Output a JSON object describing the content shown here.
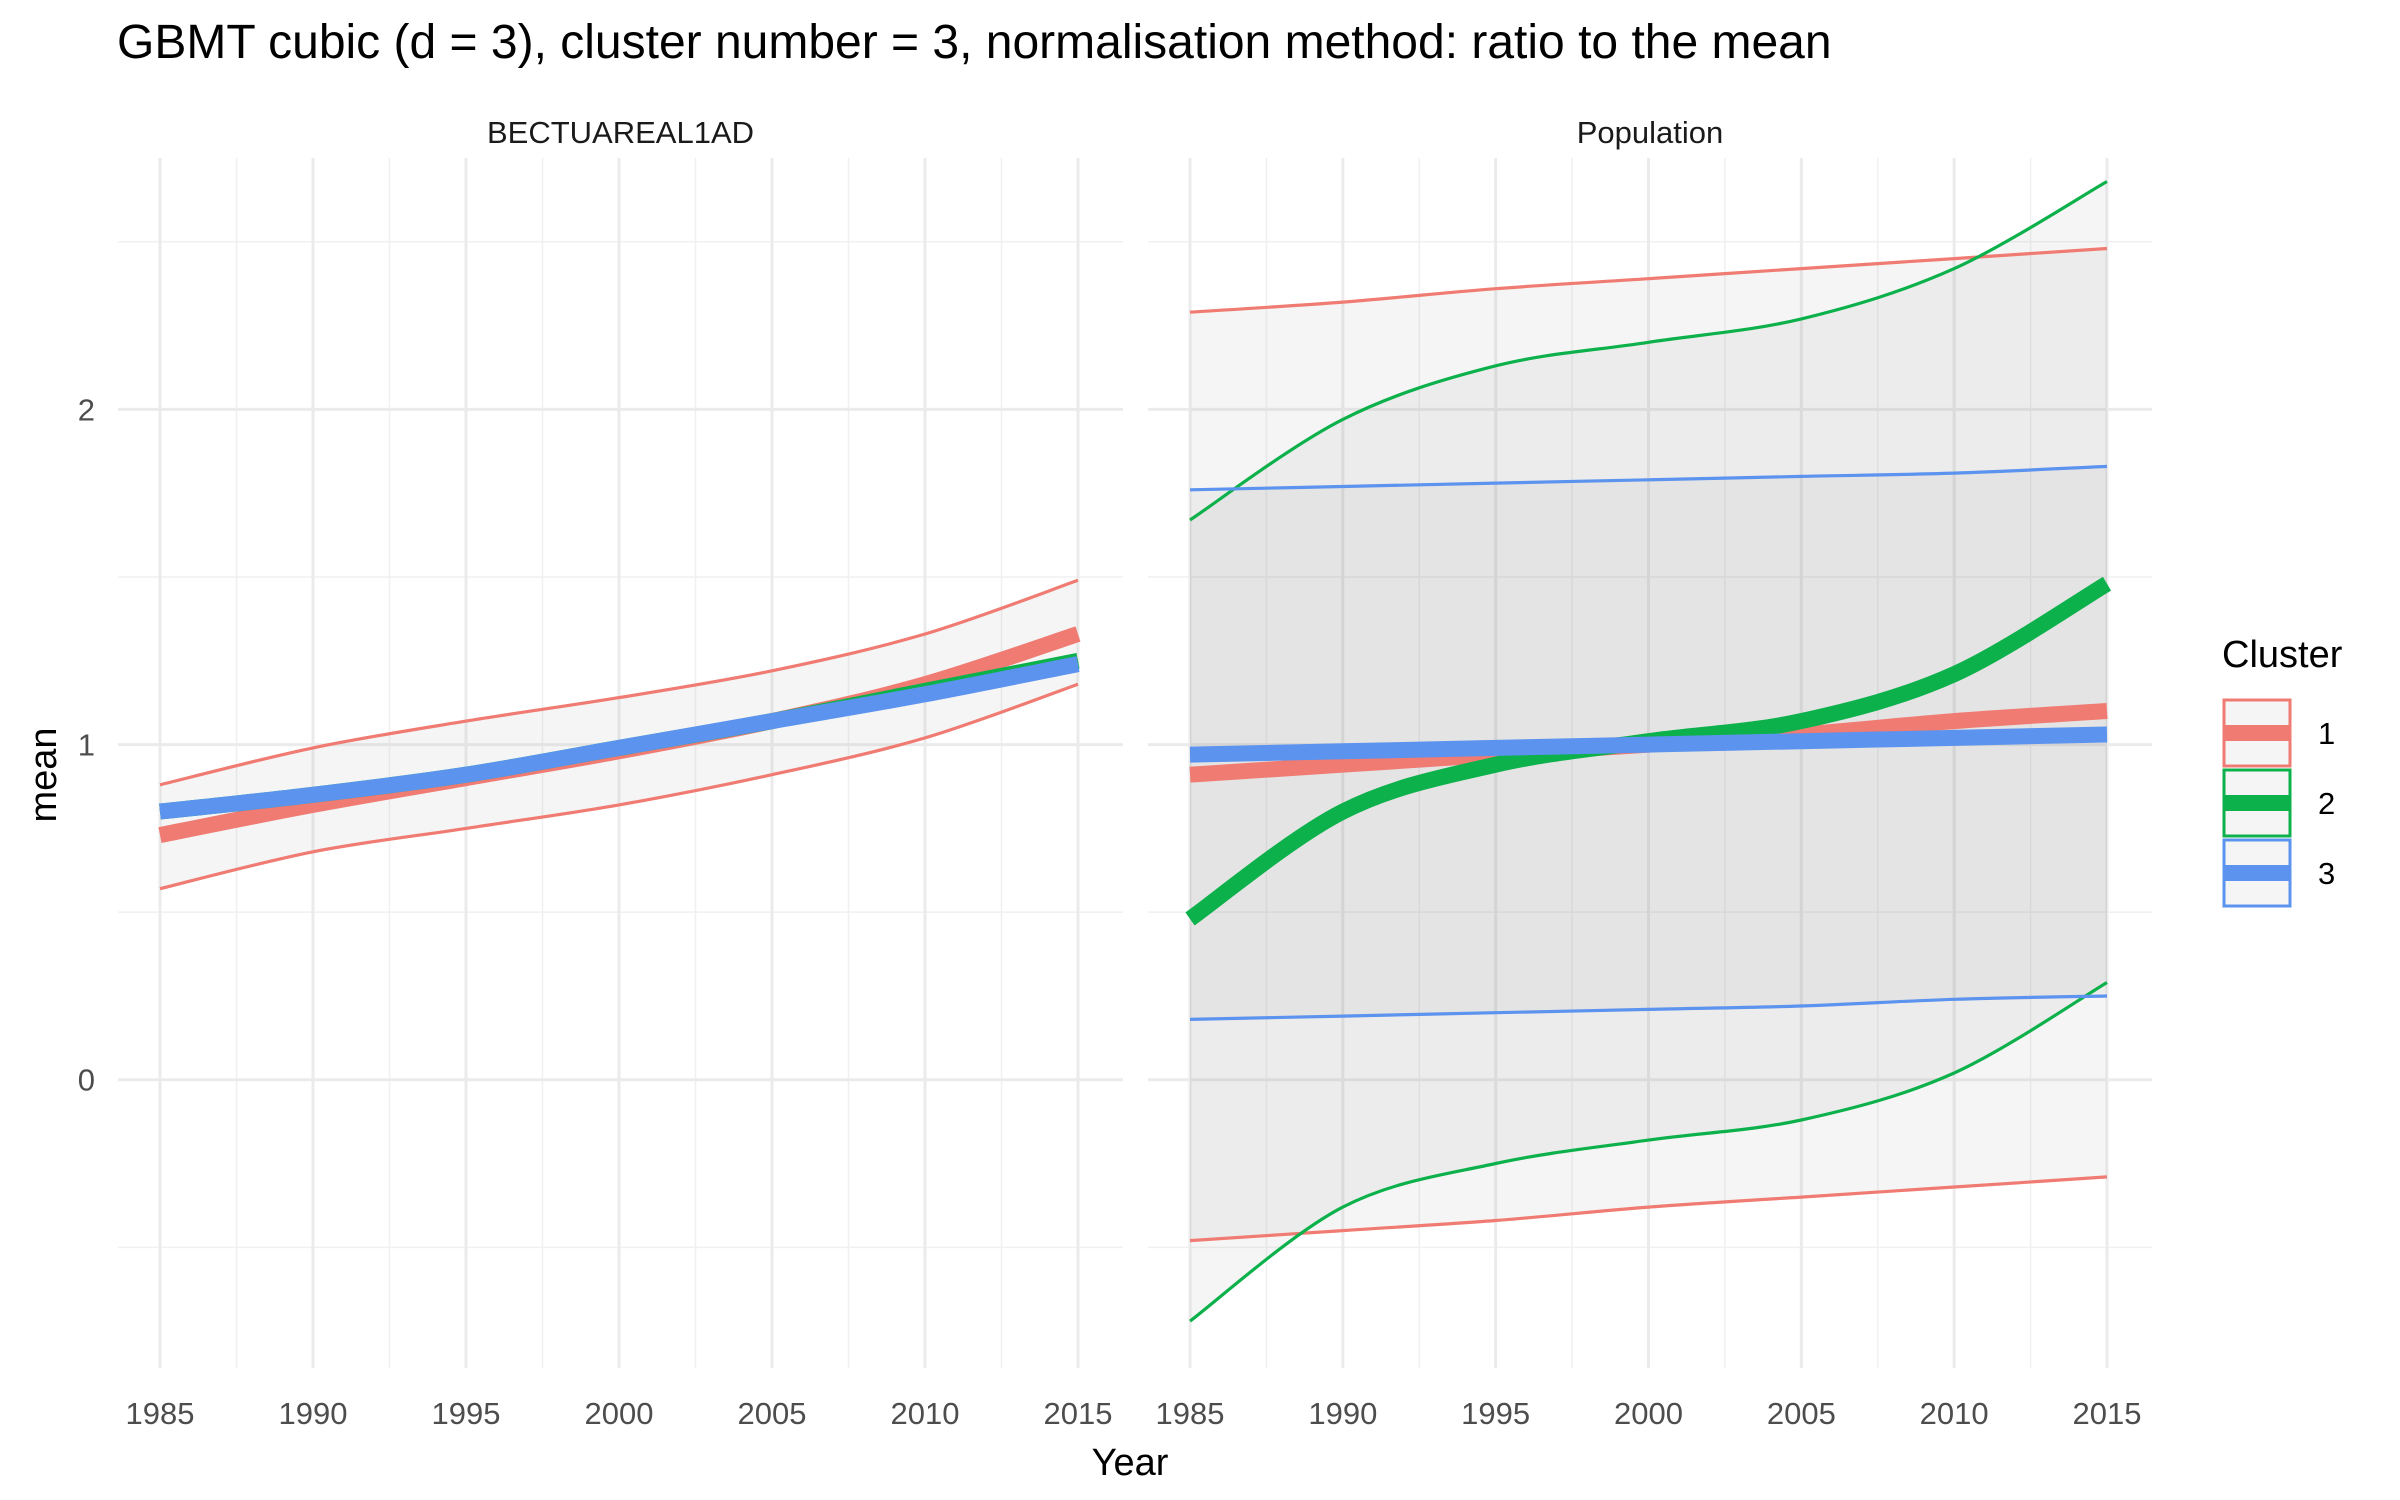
{
  "chart_data": {
    "type": "line",
    "title": "GBMT cubic (d = 3), cluster number = 3, normalisation method: ratio to the mean",
    "xlabel": "Year",
    "ylabel": "mean",
    "xlim": [
      1985,
      2015
    ],
    "ylim": [
      -0.86,
      2.75
    ],
    "x_ticks": [
      1985,
      1990,
      1995,
      2000,
      2005,
      2010,
      2015
    ],
    "y_ticks": [
      0,
      1,
      2
    ],
    "grid": true,
    "legend": {
      "title": "Cluster",
      "position": "right",
      "entries": [
        {
          "label": "1",
          "color": "#F07B72"
        },
        {
          "label": "2",
          "color": "#0DB14B"
        },
        {
          "label": "3",
          "color": "#5B93EE"
        }
      ]
    },
    "x": [
      1985,
      1990,
      1995,
      2000,
      2005,
      2010,
      2015
    ],
    "panels": [
      {
        "strip": "BECTUAREAL1AD",
        "series": [
          {
            "name": "1",
            "color": "#F07B72",
            "mean": [
              0.73,
              0.82,
              0.9,
              0.98,
              1.07,
              1.18,
              1.33
            ],
            "upper": [
              0.88,
              0.99,
              1.07,
              1.14,
              1.22,
              1.33,
              1.49
            ],
            "lower": [
              0.57,
              0.68,
              0.75,
              0.82,
              0.91,
              1.02,
              1.18
            ]
          },
          {
            "name": "2",
            "color": "#0DB14B",
            "mean": [
              0.8,
              0.85,
              0.91,
              0.99,
              1.07,
              1.16,
              1.25
            ],
            "upper": [
              0.8,
              0.85,
              0.91,
              0.99,
              1.07,
              1.16,
              1.25
            ],
            "lower": [
              0.8,
              0.85,
              0.91,
              0.99,
              1.07,
              1.16,
              1.25
            ]
          },
          {
            "name": "3",
            "color": "#5B93EE",
            "mean": [
              0.8,
              0.85,
              0.91,
              0.99,
              1.07,
              1.15,
              1.24
            ],
            "upper": [
              0.8,
              0.85,
              0.91,
              0.99,
              1.07,
              1.15,
              1.24
            ],
            "lower": [
              0.8,
              0.85,
              0.91,
              0.99,
              1.07,
              1.15,
              1.24
            ]
          }
        ]
      },
      {
        "strip": "Population",
        "series": [
          {
            "name": "1",
            "color": "#F07B72",
            "mean": [
              0.91,
              0.94,
              0.97,
              1.0,
              1.03,
              1.07,
              1.1
            ],
            "upper": [
              2.29,
              2.32,
              2.36,
              2.39,
              2.42,
              2.45,
              2.48
            ],
            "lower": [
              -0.48,
              -0.45,
              -0.42,
              -0.38,
              -0.35,
              -0.32,
              -0.29
            ]
          },
          {
            "name": "2",
            "color": "#0DB14B",
            "mean": [
              0.48,
              0.8,
              0.94,
              1.01,
              1.07,
              1.21,
              1.48
            ],
            "upper": [
              1.67,
              1.97,
              2.13,
              2.2,
              2.27,
              2.42,
              2.68
            ],
            "lower": [
              -0.72,
              -0.38,
              -0.25,
              -0.18,
              -0.12,
              0.02,
              0.29
            ]
          },
          {
            "name": "3",
            "color": "#5B93EE",
            "mean": [
              0.97,
              0.98,
              0.99,
              1.0,
              1.01,
              1.02,
              1.03
            ],
            "upper": [
              1.76,
              1.77,
              1.78,
              1.79,
              1.8,
              1.81,
              1.83
            ],
            "lower": [
              0.18,
              0.19,
              0.2,
              0.21,
              0.22,
              0.24,
              0.25
            ]
          }
        ]
      }
    ]
  }
}
